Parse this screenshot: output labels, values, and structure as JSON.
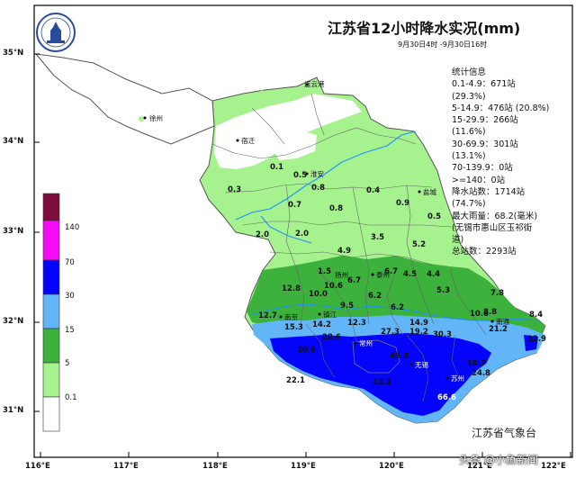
{
  "title": "江苏省12小时降水实况(mm)",
  "subtitle": "9月30日4时 -9月30日16时",
  "stats": [
    "统计信息",
    "0.1-4.9：671站",
    "(29.3%)",
    "5-14.9：476站 (20.8%)",
    "15-29.9：266站",
    "(11.6%)",
    "30-69.9：301站",
    "(13.1%)",
    "70-139.9：0站",
    ">=140：0站",
    "降水站数：1714站",
    "(74.7%)",
    "最大雨量：68.2(毫米)",
    "(无锡市惠山区玉祁街",
    "道)",
    "总站数：2293站"
  ],
  "agency": "江苏省气象台",
  "watermark": "头条 @小鱼新闻",
  "lat_labels": [
    "35°N",
    "34°N",
    "33°N",
    "32°N",
    "31°N"
  ],
  "lon_labels": [
    "116°E",
    "117°E",
    "118°E",
    "119°E",
    "120°E",
    "121°E",
    "122°E"
  ],
  "legend": {
    "labels": [
      "140",
      "70",
      "30",
      "15",
      "5",
      "0.1"
    ],
    "colors": [
      "#7d0b3c",
      "#f50bf5",
      "#0404fa",
      "#62b6f8",
      "#3cb13b",
      "#a6f28e",
      "#ffffff"
    ]
  },
  "cities": {
    "lianyungang": "连云港",
    "xuzhou": "徐州",
    "suqian": "宿迁",
    "huaian": "淮安",
    "yancheng": "盐城",
    "taizhou": "泰州",
    "nanjing": "南京",
    "zhenjiang": "镇江",
    "nantong": "南通",
    "changzhou": "常州",
    "wuxi": "无锡",
    "suzhou": "苏州",
    "yangzhou": "扬州"
  },
  "values": {
    "v1": "0.1",
    "v2": "0.5",
    "v3": "0.3",
    "v4": "0.8",
    "v5": "0.4",
    "v6": "0.9",
    "v7": "0.7",
    "v8": "0.8",
    "v9": "0.5",
    "v10": "2.0",
    "v11": "2.0",
    "v12": "3.5",
    "v13": "5.2",
    "v14": "4.9",
    "v15": "1.5",
    "v16": "6.7",
    "v17": "4.5",
    "v18": "4.4",
    "v19": "12.8",
    "v20": "10.0",
    "v21": "10.6",
    "v22": "6.7",
    "v23": "6.2",
    "v24": "5.3",
    "v25": "7.8",
    "v26": "9.5",
    "v27": "6.2",
    "v28": "12.7",
    "v29": "14.2",
    "v30": "12.3",
    "v31": "14.9",
    "v32": "10.6",
    "v33": "8.8",
    "v34": "8.4",
    "v35": "15.3",
    "v36": "28.6",
    "v37": "27.3",
    "v38": "19.2",
    "v39": "30.3",
    "v40": "21.2",
    "v41": "30.9",
    "v42": "32.9",
    "v43": "18.7",
    "v44": "45.8",
    "v45": "24.8",
    "v46": "22.1",
    "v47": "43.2",
    "v48": "66.6"
  },
  "colors": {
    "light_green": "#a6f28e",
    "green": "#3cb13b",
    "light_blue": "#62b6f8",
    "blue": "#0404fa",
    "white": "#ffffff",
    "river": "#1e90ff"
  }
}
